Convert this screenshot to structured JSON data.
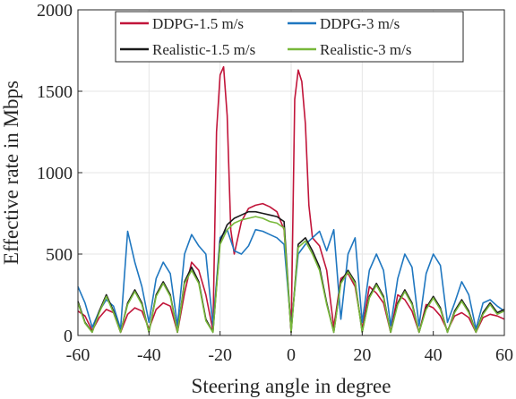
{
  "chart_data": {
    "type": "line",
    "xlabel": "Steering angle in degree",
    "ylabel": "Effective rate in Mbps",
    "xlim": [
      -60,
      60
    ],
    "ylim": [
      0,
      2000
    ],
    "xticks": [
      -60,
      -40,
      -20,
      0,
      20,
      40,
      60
    ],
    "yticks": [
      0,
      500,
      1000,
      1500,
      2000
    ],
    "grid": true,
    "legend_placement": "top",
    "series": [
      {
        "name": "DDPG-1.5 m/s",
        "color": "#c1153a",
        "x": [
          -60,
          -58,
          -56,
          -54,
          -52,
          -50,
          -48,
          -46,
          -44,
          -42,
          -40,
          -38,
          -36,
          -34,
          -32,
          -30,
          -28,
          -26,
          -24,
          -22,
          -21,
          -20,
          -19,
          -18,
          -17,
          -16,
          -14,
          -12,
          -10,
          -8,
          -6,
          -4,
          -2,
          0,
          1,
          2,
          3,
          4,
          5,
          6,
          8,
          10,
          12,
          14,
          16,
          18,
          20,
          22,
          24,
          26,
          28,
          30,
          32,
          34,
          36,
          38,
          40,
          42,
          44,
          46,
          48,
          50,
          52,
          54,
          56,
          58,
          60
        ],
        "values": [
          150,
          120,
          30,
          110,
          160,
          140,
          20,
          130,
          170,
          150,
          40,
          160,
          200,
          180,
          20,
          260,
          450,
          400,
          250,
          30,
          1250,
          1600,
          1650,
          1350,
          650,
          500,
          700,
          780,
          800,
          810,
          790,
          760,
          650,
          20,
          1450,
          1630,
          1560,
          1300,
          800,
          600,
          550,
          400,
          50,
          350,
          380,
          300,
          40,
          300,
          260,
          200,
          20,
          250,
          220,
          150,
          20,
          190,
          170,
          120,
          30,
          120,
          140,
          110,
          20,
          110,
          130,
          120,
          100
        ]
      },
      {
        "name": "DDPG-3 m/s",
        "color": "#1f77c0",
        "x": [
          -60,
          -58,
          -56,
          -54,
          -52,
          -50,
          -48,
          -46,
          -44,
          -42,
          -40,
          -38,
          -36,
          -34,
          -32,
          -30,
          -28,
          -26,
          -24,
          -22,
          -20,
          -18,
          -16,
          -14,
          -12,
          -10,
          -8,
          -6,
          -4,
          -2,
          0,
          2,
          4,
          6,
          8,
          10,
          12,
          14,
          16,
          18,
          20,
          22,
          24,
          26,
          28,
          30,
          32,
          34,
          36,
          38,
          40,
          42,
          44,
          46,
          48,
          50,
          52,
          54,
          56,
          58,
          60
        ],
        "values": [
          300,
          200,
          50,
          150,
          220,
          180,
          40,
          640,
          450,
          300,
          80,
          350,
          450,
          380,
          60,
          500,
          620,
          550,
          500,
          60,
          600,
          650,
          520,
          500,
          550,
          650,
          640,
          620,
          600,
          560,
          50,
          500,
          560,
          600,
          640,
          520,
          650,
          100,
          500,
          600,
          80,
          400,
          500,
          400,
          60,
          350,
          500,
          420,
          60,
          380,
          500,
          430,
          80,
          200,
          330,
          250,
          40,
          200,
          220,
          180,
          150
        ]
      },
      {
        "name": "Realistic-1.5 m/s",
        "color": "#1a1a1a",
        "x": [
          -60,
          -58,
          -56,
          -54,
          -52,
          -50,
          -48,
          -46,
          -44,
          -42,
          -40,
          -38,
          -36,
          -34,
          -32,
          -30,
          -28,
          -26,
          -24,
          -22,
          -20,
          -18,
          -16,
          -14,
          -12,
          -10,
          -8,
          -6,
          -4,
          -2,
          0,
          2,
          4,
          6,
          8,
          10,
          12,
          14,
          16,
          18,
          20,
          22,
          24,
          26,
          28,
          30,
          32,
          34,
          36,
          38,
          40,
          42,
          44,
          46,
          48,
          50,
          52,
          54,
          56,
          58,
          60
        ],
        "values": [
          210,
          80,
          20,
          150,
          250,
          150,
          20,
          200,
          280,
          200,
          20,
          250,
          330,
          250,
          20,
          330,
          420,
          330,
          100,
          20,
          580,
          680,
          720,
          740,
          760,
          760,
          750,
          740,
          730,
          700,
          20,
          560,
          600,
          520,
          420,
          200,
          20,
          330,
          400,
          330,
          20,
          240,
          320,
          240,
          20,
          200,
          280,
          200,
          20,
          170,
          240,
          170,
          20,
          150,
          220,
          150,
          20,
          140,
          200,
          140,
          160
        ]
      },
      {
        "name": "Realistic-3 m/s",
        "color": "#78b83a",
        "x": [
          -60,
          -58,
          -56,
          -54,
          -52,
          -50,
          -48,
          -46,
          -44,
          -42,
          -40,
          -38,
          -36,
          -34,
          -32,
          -30,
          -28,
          -26,
          -24,
          -22,
          -20,
          -18,
          -16,
          -14,
          -12,
          -10,
          -8,
          -6,
          -4,
          -2,
          0,
          2,
          4,
          6,
          8,
          10,
          12,
          14,
          16,
          18,
          20,
          22,
          24,
          26,
          28,
          30,
          32,
          34,
          36,
          38,
          40,
          42,
          44,
          46,
          48,
          50,
          52,
          54,
          56,
          58,
          60
        ],
        "values": [
          200,
          75,
          20,
          140,
          240,
          140,
          20,
          190,
          270,
          190,
          20,
          240,
          320,
          240,
          20,
          320,
          400,
          320,
          90,
          20,
          560,
          650,
          690,
          710,
          720,
          730,
          720,
          700,
          690,
          660,
          20,
          540,
          580,
          500,
          400,
          190,
          20,
          320,
          390,
          320,
          20,
          230,
          310,
          230,
          20,
          190,
          270,
          190,
          20,
          160,
          230,
          160,
          20,
          140,
          210,
          140,
          20,
          130,
          190,
          130,
          150
        ]
      }
    ]
  }
}
